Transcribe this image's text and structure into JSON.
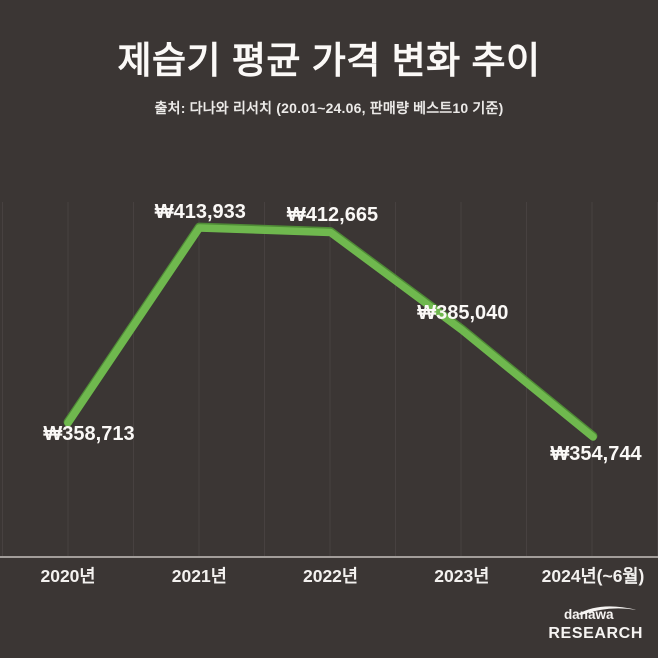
{
  "header": {
    "title": "제습기 평균 가격 변화 추이",
    "subtitle": "출처: 다나와 리서치 (20.01~24.06, 판매량 베스트10 기준)"
  },
  "chart_data": {
    "type": "line",
    "title": "제습기 평균 가격 변화 추이",
    "subtitle": "출처: 다나와 리서치 (20.01~24.06, 판매량 베스트10 기준)",
    "categories": [
      "2020년",
      "2021년",
      "2022년",
      "2023년",
      "2024년(~6월)"
    ],
    "values": [
      358713,
      413933,
      412665,
      385040,
      354744
    ],
    "value_labels": [
      "₩358,713",
      "₩413,933",
      "₩412,665",
      "₩385,040",
      "₩354,744"
    ],
    "currency": "KRW",
    "xlabel": "",
    "ylabel": "",
    "ylim": [
      320760,
      421300
    ],
    "grid": "vertical-only",
    "legend": "none",
    "line_color": "#6fb84e",
    "line_edge_color": "#4f8c36"
  },
  "colors": {
    "background": "#3b3634",
    "gridline": "#474140",
    "axis_line": "#a29d9a",
    "text_primary": "#fbf9f7",
    "text_secondary": "#eceae8",
    "accent_green": "#6fb84e"
  },
  "footer": {
    "logo_top": "danawa",
    "logo_bottom": "RESEARCH"
  }
}
